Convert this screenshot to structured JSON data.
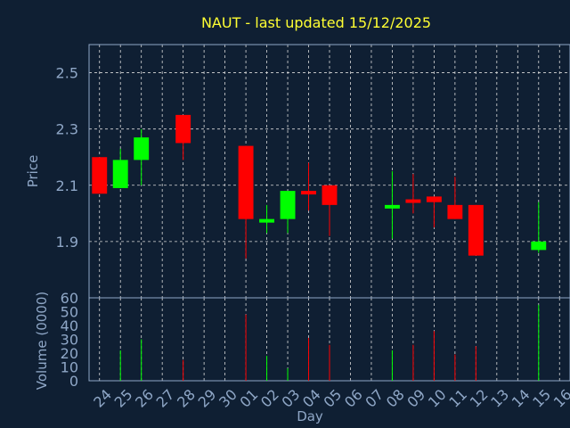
{
  "chart_data": {
    "type": "candlestick",
    "title": "NAUT - last updated 15/12/2025",
    "xlabel": "Day",
    "ylabel_price": "Price",
    "ylabel_volume": "Volume (0000)",
    "price_ylim": [
      1.7,
      2.6
    ],
    "price_ticks": [
      1.9,
      2.1,
      2.3,
      2.5
    ],
    "price_tick_labels": [
      "1.9",
      "2.1",
      "2.3",
      "2.5"
    ],
    "volume_ylim": [
      0,
      60
    ],
    "volume_ticks": [
      0,
      10,
      20,
      30,
      40,
      50,
      60
    ],
    "volume_tick_labels": [
      "0",
      "10",
      "20",
      "30",
      "40",
      "50",
      "60"
    ],
    "days": [
      "24",
      "25",
      "26",
      "27",
      "28",
      "29",
      "30",
      "01",
      "02",
      "03",
      "04",
      "05",
      "06",
      "07",
      "08",
      "09",
      "10",
      "11",
      "12",
      "13",
      "14",
      "15",
      "16"
    ],
    "candles": [
      {
        "day": "24",
        "open": 2.2,
        "close": 2.07,
        "high": 2.2,
        "low": 2.07,
        "volume": 0
      },
      {
        "day": "25",
        "open": 2.09,
        "close": 2.19,
        "high": 2.23,
        "low": 2.09,
        "volume": 22
      },
      {
        "day": "26",
        "open": 2.19,
        "close": 2.27,
        "high": 2.3,
        "low": 2.1,
        "volume": 30
      },
      {
        "day": "28",
        "open": 2.35,
        "close": 2.25,
        "high": 2.35,
        "low": 2.19,
        "volume": 15
      },
      {
        "day": "01",
        "open": 2.24,
        "close": 1.98,
        "high": 2.24,
        "low": 1.84,
        "volume": 48
      },
      {
        "day": "02",
        "open": 1.97,
        "close": 1.98,
        "high": 2.03,
        "low": 1.93,
        "volume": 18
      },
      {
        "day": "03",
        "open": 1.98,
        "close": 2.08,
        "high": 2.08,
        "low": 1.93,
        "volume": 9
      },
      {
        "day": "04",
        "open": 2.08,
        "close": 2.07,
        "high": 2.18,
        "low": 2.01,
        "volume": 31
      },
      {
        "day": "05",
        "open": 2.1,
        "close": 2.03,
        "high": 2.1,
        "low": 1.92,
        "volume": 26
      },
      {
        "day": "08",
        "open": 2.02,
        "close": 2.03,
        "high": 2.15,
        "low": 1.91,
        "volume": 22
      },
      {
        "day": "09",
        "open": 2.05,
        "close": 2.04,
        "high": 2.14,
        "low": 2.0,
        "volume": 26
      },
      {
        "day": "10",
        "open": 2.06,
        "close": 2.04,
        "high": 2.06,
        "low": 1.95,
        "volume": 36
      },
      {
        "day": "11",
        "open": 2.03,
        "close": 1.98,
        "high": 2.13,
        "low": 1.98,
        "volume": 19
      },
      {
        "day": "12",
        "open": 2.03,
        "close": 1.85,
        "high": 2.03,
        "low": 1.85,
        "volume": 25
      },
      {
        "day": "15",
        "open": 1.87,
        "close": 1.9,
        "high": 2.04,
        "low": 1.86,
        "volume": 55
      }
    ],
    "grid": true,
    "colors": {
      "up": "#00ff00",
      "down": "#ff0000",
      "background": "#0f1f33",
      "title": "#ffff33",
      "axis": "#8fa7c7"
    }
  }
}
